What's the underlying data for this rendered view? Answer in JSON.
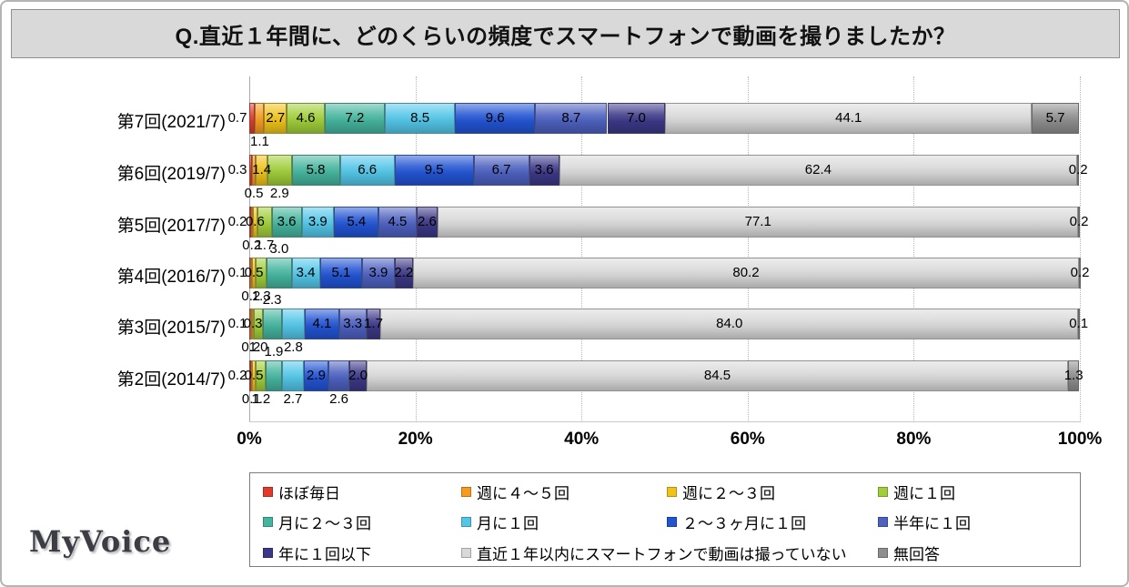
{
  "title": "Q.直近１年間に、どのくらいの頻度でスマートフォンで動画を撮りましたか？",
  "logo_text": "MyVoice",
  "chart_data": {
    "type": "bar",
    "stacked": true,
    "orientation": "horizontal",
    "value_unit": "%",
    "xlim": [
      0,
      100
    ],
    "x_ticks": [
      "0%",
      "20%",
      "40%",
      "60%",
      "80%",
      "100%"
    ],
    "grid": "vertical-dotted",
    "legend_position": "bottom-box",
    "categories": [
      "第7回(2021/7)",
      "第6回(2019/7)",
      "第5回(2017/7)",
      "第4回(2016/7)",
      "第3回(2015/7)",
      "第2回(2014/7)"
    ],
    "series": [
      {
        "name": "ほぼ毎日",
        "color": "#df3a2c",
        "values": [
          0.7,
          0.3,
          0.2,
          0.1,
          0.1,
          0.2
        ],
        "label_pos": [
          "left",
          "left",
          "left",
          "left",
          "left",
          "left"
        ]
      },
      {
        "name": "週に４～５回",
        "color": "#f59b1f",
        "values": [
          1.1,
          0.5,
          0.2,
          0.2,
          0.2,
          0.1
        ],
        "label_pos": [
          "below",
          "below",
          "below",
          "below",
          "below",
          "below"
        ]
      },
      {
        "name": "週に２～３回",
        "color": "#efc31a",
        "values": [
          2.7,
          1.4,
          0.6,
          0.5,
          0.3,
          0.5
        ],
        "label_pos": [
          "in",
          "in",
          "in",
          "in",
          "in",
          "in"
        ]
      },
      {
        "name": "週に１回",
        "color": "#a0ce3a",
        "values": [
          4.6,
          2.9,
          1.7,
          1.3,
          1.0,
          1.2
        ],
        "label_pos": [
          "in",
          "below",
          "below",
          "below",
          "below",
          "below"
        ]
      },
      {
        "name": "月に２～３回",
        "color": "#45b59e",
        "values": [
          7.2,
          5.8,
          3.6,
          3.0,
          2.3,
          1.9
        ],
        "label_pos": [
          "in",
          "in",
          "in",
          "above",
          "above",
          "above"
        ]
      },
      {
        "name": "月に１回",
        "color": "#53c6e8",
        "values": [
          8.5,
          6.6,
          3.9,
          3.4,
          2.8,
          2.7
        ],
        "label_pos": [
          "in",
          "in",
          "in",
          "in",
          "below",
          "below"
        ]
      },
      {
        "name": "２～３ヶ月に１回",
        "color": "#2254d3",
        "values": [
          9.6,
          9.5,
          5.4,
          5.1,
          4.1,
          2.9
        ],
        "label_pos": [
          "in",
          "in",
          "in",
          "in",
          "in",
          "in"
        ]
      },
      {
        "name": "半年に１回",
        "color": "#4d61c0",
        "values": [
          8.7,
          6.7,
          4.5,
          3.9,
          3.3,
          2.6
        ],
        "label_pos": [
          "in",
          "in",
          "in",
          "in",
          "in",
          "below"
        ]
      },
      {
        "name": "年に１回以下",
        "color": "#3c3888",
        "values": [
          7.0,
          3.6,
          2.6,
          2.2,
          1.7,
          2.0
        ],
        "label_pos": [
          "in",
          "in",
          "in",
          "in",
          "in",
          "in"
        ]
      },
      {
        "name": "直近１年以内にスマートフォンで動画は撮っていない",
        "color": "#d9d9d9",
        "values": [
          44.1,
          62.4,
          77.1,
          80.2,
          84.0,
          84.5
        ],
        "label_pos": [
          "in",
          "in",
          "in",
          "in",
          "in",
          "in"
        ]
      },
      {
        "name": "無回答",
        "color": "#8e8e8e",
        "values": [
          5.7,
          0.2,
          0.2,
          0.2,
          0.1,
          1.3
        ],
        "label_pos": [
          "in",
          "in",
          "in",
          "in",
          "in",
          "in"
        ]
      }
    ]
  }
}
